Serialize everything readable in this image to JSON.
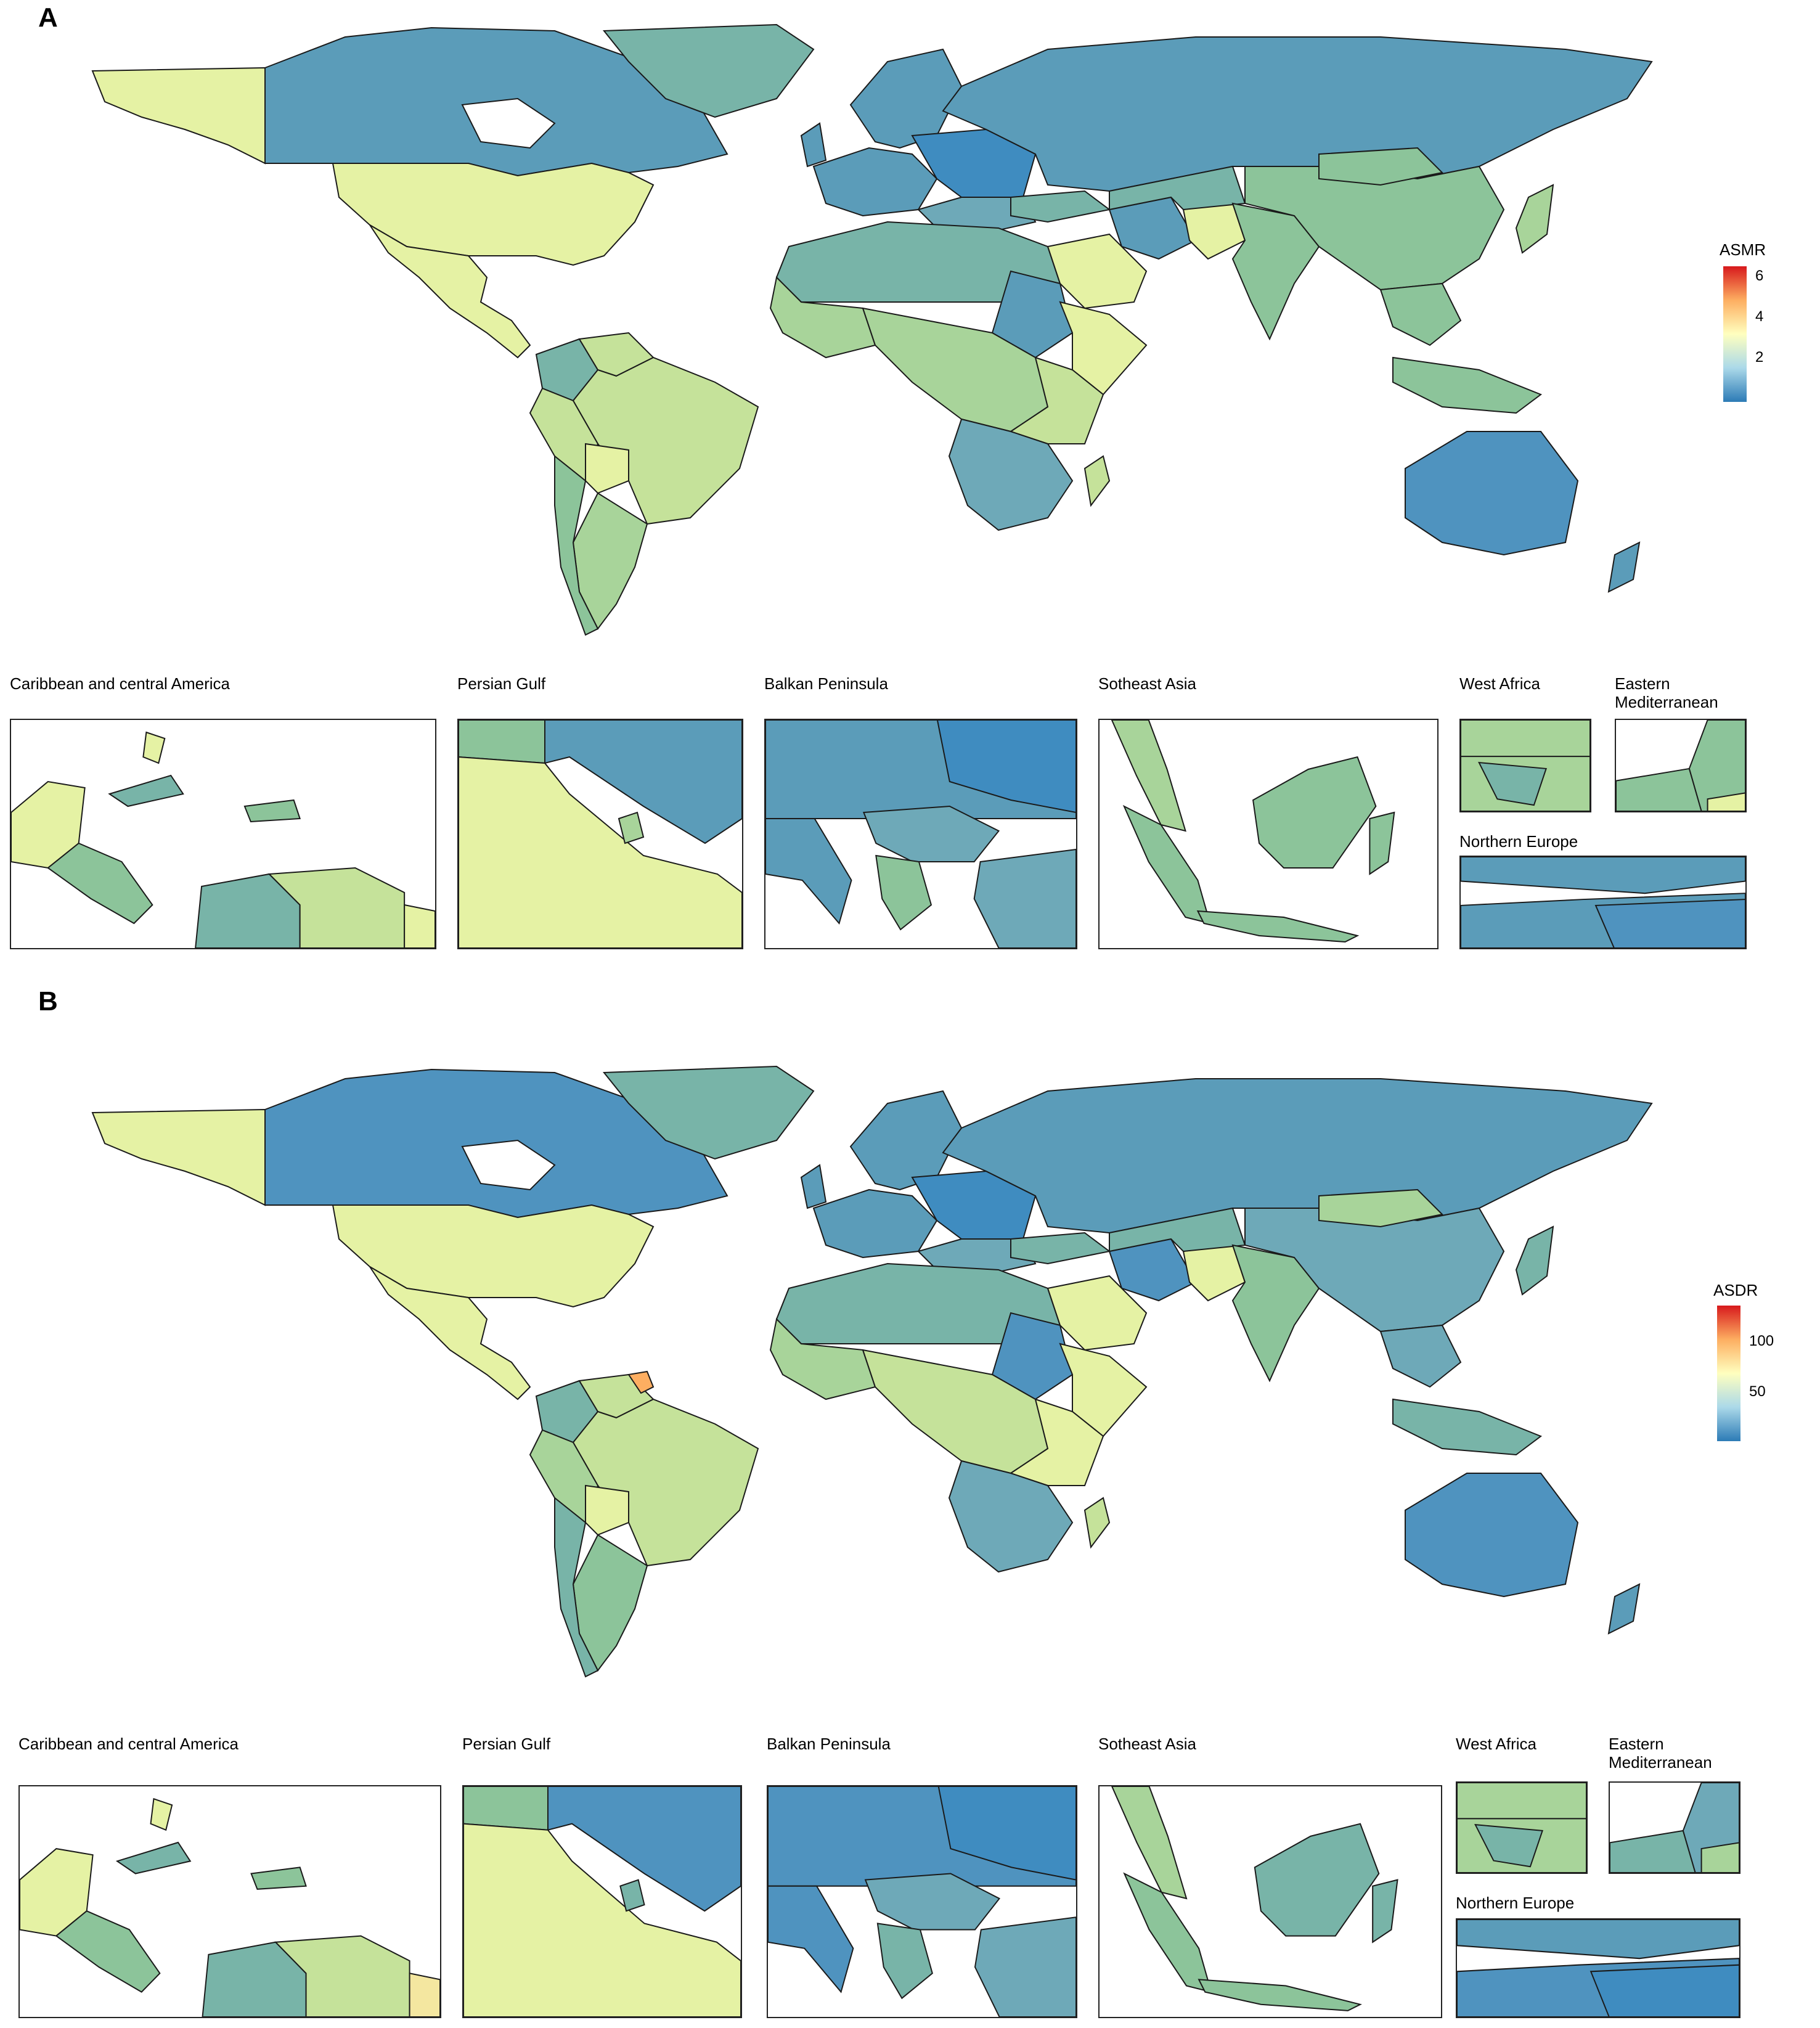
{
  "colors": {
    "scale": [
      "#2c7bb6",
      "#abd9e9",
      "#ffffbf",
      "#fdae61",
      "#d7191c"
    ],
    "ocean": "#ffffff",
    "border": "#1a1a1a"
  },
  "panels": [
    {
      "letter": "A",
      "legend": {
        "title": "ASMR",
        "ticks": [
          "6",
          "4",
          "2"
        ]
      },
      "insets": [
        {
          "title": "Caribbean and central America",
          "icon": "caribbean-map"
        },
        {
          "title": "Persian Gulf",
          "icon": "persian-gulf-map"
        },
        {
          "title": "Balkan Peninsula",
          "icon": "balkan-map"
        },
        {
          "title": "Sotheast Asia",
          "icon": "southeast-asia-map"
        },
        {
          "title": "West Africa",
          "icon": "west-africa-map"
        },
        {
          "title": "Eastern\nMediterranean",
          "icon": "eastern-mediterranean-map"
        },
        {
          "title": "Northern Europe",
          "icon": "northern-europe-map"
        }
      ]
    },
    {
      "letter": "B",
      "legend": {
        "title": "ASDR",
        "ticks": [
          "100",
          "50"
        ]
      },
      "insets": [
        {
          "title": "Caribbean and central America",
          "icon": "caribbean-map"
        },
        {
          "title": "Persian Gulf",
          "icon": "persian-gulf-map"
        },
        {
          "title": "Balkan Peninsula",
          "icon": "balkan-map"
        },
        {
          "title": "Sotheast Asia",
          "icon": "southeast-asia-map"
        },
        {
          "title": "West Africa",
          "icon": "west-africa-map"
        },
        {
          "title": "Eastern\nMediterranean",
          "icon": "eastern-mediterranean-map"
        },
        {
          "title": "Northern Europe",
          "icon": "northern-europe-map"
        }
      ]
    }
  ]
}
